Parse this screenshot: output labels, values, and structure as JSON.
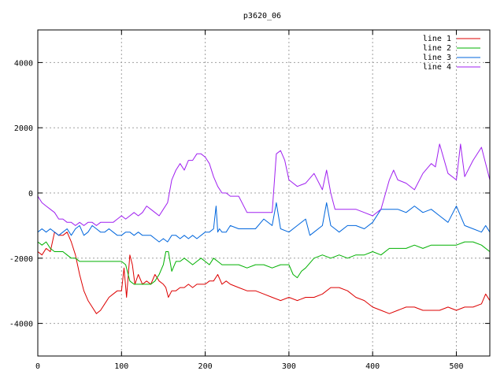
{
  "chart_data": {
    "type": "line",
    "title": "p3620_06",
    "xlabel": "",
    "ylabel": "",
    "xlim": [
      0,
      540
    ],
    "ylim": [
      -5000,
      5000
    ],
    "xticks": [
      0,
      100,
      200,
      300,
      400,
      500
    ],
    "yticks": [
      -4000,
      -2000,
      0,
      2000,
      4000
    ],
    "grid": true,
    "legend_position": "top-right",
    "series": [
      {
        "name": "line 1",
        "color": "#dd0000",
        "x": [
          0,
          5,
          10,
          15,
          20,
          25,
          30,
          35,
          40,
          45,
          50,
          55,
          60,
          65,
          70,
          75,
          80,
          85,
          90,
          95,
          100,
          103,
          106,
          110,
          113,
          116,
          120,
          125,
          130,
          135,
          140,
          145,
          150,
          153,
          156,
          160,
          165,
          170,
          175,
          180,
          185,
          190,
          195,
          200,
          205,
          210,
          215,
          220,
          225,
          230,
          240,
          250,
          260,
          270,
          280,
          290,
          300,
          310,
          320,
          330,
          340,
          350,
          360,
          370,
          380,
          390,
          400,
          410,
          420,
          430,
          440,
          450,
          460,
          470,
          480,
          490,
          500,
          510,
          520,
          530,
          535,
          540
        ],
        "y": [
          -1800,
          -1900,
          -1700,
          -1800,
          -1200,
          -1300,
          -1300,
          -1200,
          -1500,
          -1900,
          -2500,
          -3000,
          -3300,
          -3500,
          -3700,
          -3600,
          -3400,
          -3200,
          -3100,
          -3000,
          -3000,
          -2300,
          -3200,
          -1900,
          -2200,
          -2800,
          -2500,
          -2800,
          -2700,
          -2800,
          -2500,
          -2700,
          -2800,
          -2900,
          -3200,
          -3000,
          -3000,
          -2900,
          -2900,
          -2800,
          -2900,
          -2800,
          -2800,
          -2800,
          -2700,
          -2700,
          -2500,
          -2800,
          -2700,
          -2800,
          -2900,
          -3000,
          -3000,
          -3100,
          -3200,
          -3300,
          -3200,
          -3300,
          -3200,
          -3200,
          -3100,
          -2900,
          -2900,
          -3000,
          -3200,
          -3300,
          -3500,
          -3600,
          -3700,
          -3600,
          -3500,
          -3500,
          -3600,
          -3600,
          -3600,
          -3500,
          -3600,
          -3500,
          -3500,
          -3400,
          -3100,
          -3300
        ]
      },
      {
        "name": "line 2",
        "color": "#00b000",
        "x": [
          0,
          5,
          10,
          15,
          20,
          25,
          30,
          35,
          40,
          45,
          50,
          55,
          60,
          65,
          70,
          75,
          80,
          85,
          90,
          95,
          100,
          105,
          110,
          115,
          120,
          125,
          130,
          135,
          140,
          145,
          150,
          153,
          156,
          160,
          165,
          170,
          175,
          180,
          185,
          190,
          195,
          200,
          205,
          210,
          215,
          220,
          225,
          230,
          240,
          250,
          260,
          270,
          280,
          290,
          300,
          305,
          310,
          315,
          320,
          330,
          340,
          350,
          360,
          370,
          380,
          390,
          400,
          410,
          420,
          430,
          440,
          450,
          460,
          470,
          480,
          490,
          500,
          510,
          520,
          530,
          540
        ],
        "y": [
          -1500,
          -1600,
          -1500,
          -1700,
          -1800,
          -1800,
          -1800,
          -1900,
          -2000,
          -2000,
          -2100,
          -2100,
          -2100,
          -2100,
          -2100,
          -2100,
          -2100,
          -2100,
          -2100,
          -2100,
          -2100,
          -2200,
          -2700,
          -2800,
          -2800,
          -2800,
          -2800,
          -2800,
          -2700,
          -2500,
          -2200,
          -1800,
          -1800,
          -2400,
          -2100,
          -2100,
          -2000,
          -2100,
          -2200,
          -2100,
          -2000,
          -2100,
          -2200,
          -2000,
          -2100,
          -2200,
          -2200,
          -2200,
          -2200,
          -2300,
          -2200,
          -2200,
          -2300,
          -2200,
          -2200,
          -2500,
          -2600,
          -2400,
          -2300,
          -2000,
          -1900,
          -2000,
          -1900,
          -2000,
          -1900,
          -1900,
          -1800,
          -1900,
          -1700,
          -1700,
          -1700,
          -1600,
          -1700,
          -1600,
          -1600,
          -1600,
          -1600,
          -1500,
          -1500,
          -1600,
          -1800
        ]
      },
      {
        "name": "line 3",
        "color": "#0066dd",
        "x": [
          0,
          5,
          10,
          15,
          20,
          25,
          30,
          35,
          40,
          45,
          50,
          55,
          60,
          65,
          70,
          75,
          80,
          85,
          90,
          95,
          100,
          105,
          110,
          115,
          120,
          125,
          130,
          135,
          140,
          145,
          150,
          155,
          160,
          165,
          170,
          175,
          180,
          185,
          190,
          195,
          200,
          205,
          210,
          213,
          215,
          217,
          220,
          225,
          230,
          240,
          250,
          260,
          270,
          280,
          285,
          290,
          300,
          310,
          320,
          325,
          330,
          340,
          345,
          350,
          355,
          360,
          370,
          380,
          390,
          400,
          410,
          420,
          430,
          440,
          450,
          460,
          470,
          480,
          490,
          500,
          510,
          520,
          530,
          535,
          540
        ],
        "y": [
          -1200,
          -1100,
          -1200,
          -1100,
          -1200,
          -1300,
          -1200,
          -1100,
          -1300,
          -1100,
          -1000,
          -1300,
          -1200,
          -1000,
          -1100,
          -1200,
          -1200,
          -1100,
          -1200,
          -1300,
          -1300,
          -1200,
          -1200,
          -1300,
          -1200,
          -1300,
          -1300,
          -1300,
          -1400,
          -1500,
          -1400,
          -1500,
          -1300,
          -1300,
          -1400,
          -1300,
          -1400,
          -1300,
          -1400,
          -1300,
          -1200,
          -1200,
          -1100,
          -400,
          -1200,
          -1100,
          -1200,
          -1200,
          -1000,
          -1100,
          -1100,
          -1100,
          -800,
          -1000,
          -300,
          -1100,
          -1200,
          -1000,
          -800,
          -1300,
          -1200,
          -1000,
          -300,
          -1000,
          -1100,
          -1200,
          -1000,
          -1000,
          -1100,
          -900,
          -500,
          -500,
          -500,
          -600,
          -400,
          -600,
          -500,
          -700,
          -900,
          -400,
          -1000,
          -1100,
          -1200,
          -1000,
          -1200
        ]
      },
      {
        "name": "line 4",
        "color": "#a020f0",
        "x": [
          0,
          5,
          10,
          15,
          20,
          25,
          30,
          35,
          40,
          45,
          50,
          55,
          60,
          65,
          70,
          75,
          80,
          85,
          90,
          95,
          100,
          105,
          110,
          115,
          120,
          125,
          130,
          135,
          140,
          145,
          150,
          155,
          160,
          165,
          170,
          175,
          180,
          185,
          190,
          195,
          200,
          205,
          210,
          215,
          220,
          225,
          230,
          240,
          250,
          260,
          270,
          280,
          285,
          290,
          295,
          300,
          310,
          320,
          330,
          340,
          345,
          350,
          355,
          360,
          370,
          380,
          390,
          400,
          410,
          420,
          425,
          430,
          440,
          450,
          460,
          470,
          475,
          480,
          490,
          500,
          505,
          510,
          520,
          530,
          535,
          540
        ],
        "y": [
          -100,
          -300,
          -400,
          -500,
          -600,
          -800,
          -800,
          -900,
          -900,
          -1000,
          -900,
          -1000,
          -900,
          -900,
          -1000,
          -900,
          -900,
          -900,
          -900,
          -800,
          -700,
          -800,
          -700,
          -600,
          -700,
          -600,
          -400,
          -500,
          -600,
          -700,
          -500,
          -300,
          400,
          700,
          900,
          700,
          1000,
          1000,
          1200,
          1200,
          1100,
          900,
          500,
          200,
          0,
          0,
          -100,
          -100,
          -600,
          -600,
          -600,
          -600,
          1200,
          1300,
          1000,
          400,
          200,
          300,
          600,
          100,
          700,
          0,
          -500,
          -500,
          -500,
          -500,
          -600,
          -700,
          -500,
          400,
          700,
          400,
          300,
          100,
          600,
          900,
          800,
          1500,
          600,
          400,
          1500,
          500,
          1000,
          1400,
          900,
          400
        ]
      }
    ]
  }
}
